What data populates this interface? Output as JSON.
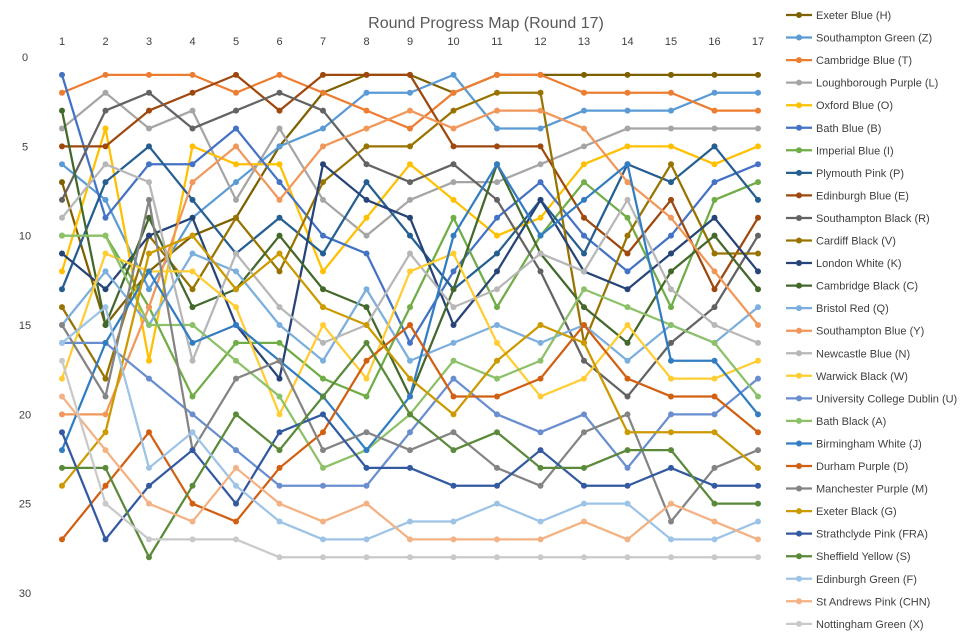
{
  "chart_data": {
    "type": "line",
    "title": "Round Progress Map (Round 17)",
    "xlabel": "",
    "ylabel": "",
    "x": [
      1,
      2,
      3,
      4,
      5,
      6,
      7,
      8,
      9,
      10,
      11,
      12,
      13,
      14,
      15,
      16,
      17
    ],
    "xlim": [
      1,
      17
    ],
    "ylim": [
      30,
      0
    ],
    "y_ticks": [
      0,
      5,
      10,
      15,
      20,
      25,
      30
    ],
    "y_inverted": true,
    "x_axis_position": "top",
    "grid": false,
    "legend_position": "right",
    "series": [
      {
        "name": "Exeter Blue (H)",
        "color": "#7f6000",
        "values": [
          7,
          15,
          12,
          10,
          9,
          5,
          2,
          1,
          1,
          2,
          1,
          1,
          1,
          1,
          1,
          1,
          1
        ]
      },
      {
        "name": "Southampton Green (Z)",
        "color": "#5b9bd5",
        "values": [
          6,
          8,
          13,
          9,
          7,
          5,
          4,
          2,
          2,
          1,
          4,
          4,
          3,
          3,
          3,
          2,
          2
        ]
      },
      {
        "name": "Cambridge Blue (T)",
        "color": "#ed7d31",
        "values": [
          2,
          1,
          1,
          1,
          2,
          1,
          2,
          3,
          4,
          2,
          1,
          1,
          2,
          2,
          2,
          3,
          3
        ]
      },
      {
        "name": "Loughborough Purple (L)",
        "color": "#a5a5a5",
        "values": [
          4,
          2,
          4,
          3,
          8,
          4,
          8,
          10,
          8,
          7,
          7,
          6,
          5,
          4,
          4,
          4,
          4
        ]
      },
      {
        "name": "Oxford Blue (O)",
        "color": "#ffc000",
        "values": [
          12,
          4,
          17,
          5,
          6,
          6,
          12,
          9,
          6,
          8,
          10,
          9,
          6,
          5,
          5,
          6,
          5
        ]
      },
      {
        "name": "Bath Blue (B)",
        "color": "#4472c4",
        "values": [
          1,
          9,
          6,
          6,
          4,
          7,
          10,
          11,
          16,
          12,
          9,
          7,
          10,
          12,
          10,
          7,
          6
        ]
      },
      {
        "name": "Imperial Blue (I)",
        "color": "#70ad47",
        "values": [
          10,
          10,
          14,
          19,
          16,
          16,
          18,
          19,
          14,
          9,
          14,
          10,
          7,
          9,
          14,
          8,
          7
        ]
      },
      {
        "name": "Plymouth Pink (P)",
        "color": "#255e91",
        "values": [
          13,
          7,
          5,
          8,
          11,
          9,
          11,
          7,
          10,
          13,
          11,
          8,
          11,
          6,
          7,
          5,
          8
        ]
      },
      {
        "name": "Edinburgh Blue (E)",
        "color": "#9e480e",
        "values": [
          5,
          5,
          3,
          2,
          1,
          3,
          1,
          1,
          1,
          5,
          5,
          5,
          9,
          11,
          8,
          13,
          9
        ]
      },
      {
        "name": "Southampton Black (R)",
        "color": "#636363",
        "values": [
          8,
          3,
          2,
          4,
          3,
          2,
          3,
          6,
          7,
          6,
          8,
          12,
          17,
          19,
          16,
          14,
          10
        ]
      },
      {
        "name": "Cardiff Black (V)",
        "color": "#997300",
        "values": [
          14,
          18,
          10,
          13,
          9,
          12,
          7,
          5,
          5,
          3,
          2,
          2,
          16,
          10,
          6,
          11,
          11
        ]
      },
      {
        "name": "London White (K)",
        "color": "#264478",
        "values": [
          11,
          13,
          10,
          9,
          15,
          18,
          6,
          8,
          9,
          15,
          12,
          8,
          12,
          13,
          11,
          9,
          12
        ]
      },
      {
        "name": "Cambridge Black (C)",
        "color": "#43682b",
        "values": [
          3,
          15,
          9,
          14,
          13,
          10,
          13,
          14,
          19,
          13,
          6,
          11,
          14,
          16,
          12,
          10,
          13
        ]
      },
      {
        "name": "Bristol Red (Q)",
        "color": "#7cafdd",
        "values": [
          15,
          12,
          15,
          11,
          12,
          15,
          17,
          13,
          17,
          16,
          15,
          16,
          15,
          17,
          15,
          16,
          14
        ]
      },
      {
        "name": "Southampton Blue (Y)",
        "color": "#f1975a",
        "values": [
          20,
          20,
          14,
          7,
          5,
          8,
          5,
          4,
          3,
          4,
          3,
          3,
          4,
          7,
          9,
          12,
          15
        ]
      },
      {
        "name": "Newcastle Blue (N)",
        "color": "#b7b7b7",
        "values": [
          9,
          6,
          7,
          17,
          11,
          14,
          16,
          15,
          11,
          14,
          13,
          11,
          12,
          8,
          13,
          15,
          16
        ]
      },
      {
        "name": "Warwick Black (W)",
        "color": "#ffcd33",
        "values": [
          18,
          11,
          12,
          12,
          14,
          20,
          15,
          18,
          12,
          11,
          16,
          19,
          18,
          15,
          18,
          18,
          17
        ]
      },
      {
        "name": "University College Dublin (U)",
        "color": "#698ed0",
        "values": [
          16,
          16,
          18,
          20,
          22,
          24,
          24,
          24,
          21,
          18,
          20,
          21,
          20,
          23,
          20,
          20,
          18
        ]
      },
      {
        "name": "Bath Black (A)",
        "color": "#8cc168",
        "values": [
          10,
          10,
          15,
          15,
          17,
          19,
          23,
          22,
          20,
          17,
          18,
          17,
          13,
          14,
          15,
          16,
          19
        ]
      },
      {
        "name": "Birmingham White (J)",
        "color": "#327dc2",
        "values": [
          22,
          16,
          12,
          16,
          15,
          17,
          19,
          22,
          19,
          10,
          6,
          10,
          8,
          6,
          17,
          17,
          20
        ]
      },
      {
        "name": "Durham Purple (D)",
        "color": "#d26012",
        "values": [
          27,
          24,
          21,
          25,
          26,
          23,
          21,
          17,
          15,
          19,
          19,
          18,
          15,
          18,
          19,
          19,
          21
        ]
      },
      {
        "name": "Manchester Purple (M)",
        "color": "#848484",
        "values": [
          15,
          19,
          8,
          22,
          18,
          17,
          22,
          21,
          22,
          21,
          23,
          24,
          21,
          20,
          26,
          23,
          22
        ]
      },
      {
        "name": "Exeter Black (G)",
        "color": "#cc9a00",
        "values": [
          24,
          21,
          11,
          10,
          13,
          11,
          14,
          15,
          18,
          20,
          17,
          15,
          16,
          21,
          21,
          21,
          23
        ]
      },
      {
        "name": "Strathclyde Pink (FRA)",
        "color": "#335aa1",
        "values": [
          21,
          27,
          24,
          22,
          25,
          21,
          20,
          23,
          23,
          24,
          24,
          22,
          24,
          24,
          23,
          24,
          24
        ]
      },
      {
        "name": "Sheffield Yellow (S)",
        "color": "#5a8a39",
        "values": [
          23,
          23,
          28,
          24,
          20,
          22,
          19,
          16,
          20,
          22,
          21,
          23,
          23,
          22,
          22,
          25,
          25
        ]
      },
      {
        "name": "Edinburgh Green (F)",
        "color": "#9dc3e6",
        "values": [
          16,
          14,
          23,
          21,
          24,
          26,
          27,
          27,
          26,
          26,
          25,
          26,
          25,
          25,
          27,
          27,
          26
        ]
      },
      {
        "name": "St Andrews Pink (CHN)",
        "color": "#f4b183",
        "values": [
          19,
          22,
          25,
          26,
          23,
          25,
          26,
          25,
          27,
          27,
          27,
          27,
          26,
          27,
          25,
          26,
          27
        ]
      },
      {
        "name": "Nottingham Green (X)",
        "color": "#c9c9c9",
        "values": [
          17,
          25,
          27,
          27,
          27,
          28,
          28,
          28,
          28,
          28,
          28,
          28,
          28,
          28,
          28,
          28,
          28
        ]
      }
    ]
  }
}
